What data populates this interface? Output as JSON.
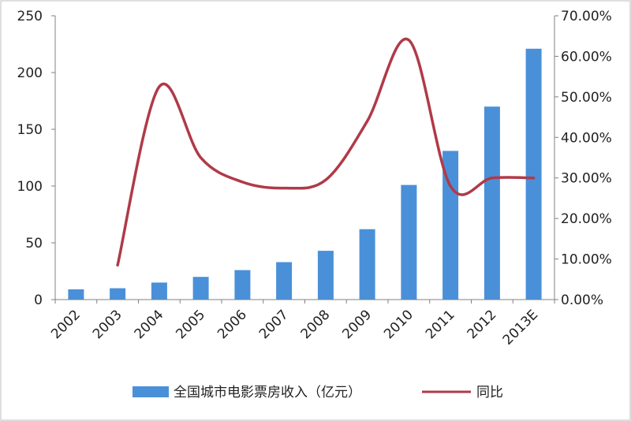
{
  "chart_data": {
    "type": "bar",
    "categories": [
      "2002",
      "2003",
      "2004",
      "2005",
      "2006",
      "2007",
      "2008",
      "2009",
      "2010",
      "2011",
      "2012",
      "2013E"
    ],
    "series": [
      {
        "name": "全国城市电影票房收入（亿元）",
        "type": "bar",
        "axis": "left",
        "color": "#4a90d9",
        "values": [
          9,
          10,
          15,
          20,
          26,
          33,
          43,
          62,
          101,
          131,
          170,
          221
        ]
      },
      {
        "name": "同比",
        "type": "line",
        "axis": "right",
        "color": "#b03a48",
        "values": [
          null,
          8.5,
          52.5,
          35,
          29,
          27.5,
          29.5,
          44,
          64,
          28,
          30,
          30
        ]
      }
    ],
    "yleft": {
      "min": 0,
      "max": 250,
      "ticks": [
        "0",
        "50",
        "100",
        "150",
        "200",
        "250"
      ]
    },
    "yright": {
      "min": 0,
      "max": 70,
      "ticks": [
        "0.00%",
        "10.00%",
        "20.00%",
        "30.00%",
        "40.00%",
        "50.00%",
        "60.00%",
        "70.00%"
      ]
    },
    "legend": {
      "position": "bottom",
      "items": [
        "全国城市电影票房收入（亿元）",
        "同比"
      ]
    },
    "grid": false
  }
}
